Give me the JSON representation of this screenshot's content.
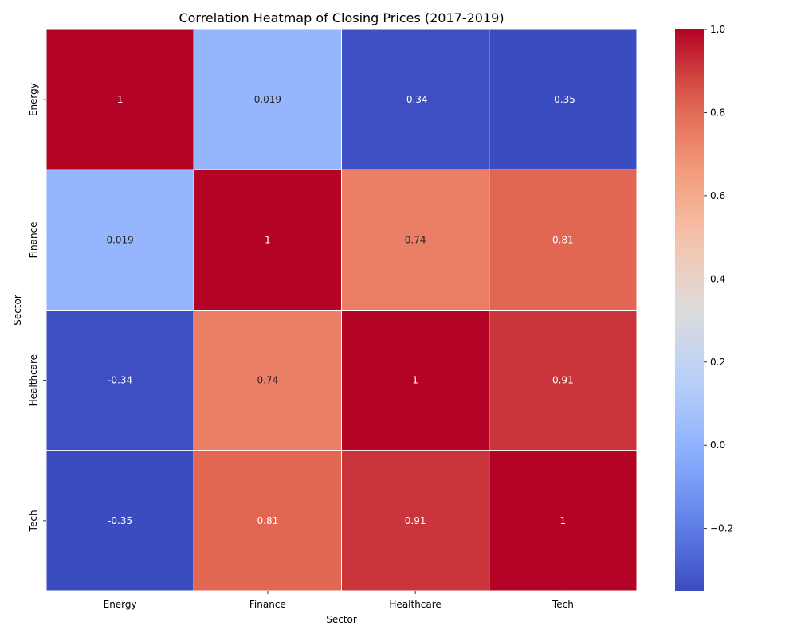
{
  "chart_data": {
    "type": "heatmap",
    "title": "Correlation Heatmap of Closing Prices (2017-2019)",
    "xlabel": "Sector",
    "ylabel": "Sector",
    "x_categories": [
      "Energy",
      "Finance",
      "Healthcare",
      "Tech"
    ],
    "y_categories": [
      "Energy",
      "Finance",
      "Healthcare",
      "Tech"
    ],
    "values": [
      [
        1,
        0.019,
        -0.34,
        -0.35
      ],
      [
        0.019,
        1,
        0.74,
        0.81
      ],
      [
        -0.34,
        0.74,
        1,
        0.91
      ],
      [
        -0.35,
        0.81,
        0.91,
        1
      ]
    ],
    "annotations": [
      [
        "1",
        "0.019",
        "-0.34",
        "-0.35"
      ],
      [
        "0.019",
        "1",
        "0.74",
        "0.81"
      ],
      [
        "-0.34",
        "0.74",
        "1",
        "0.91"
      ],
      [
        "-0.35",
        "0.81",
        "0.91",
        "1"
      ]
    ],
    "colormap": "coolwarm",
    "colorbar": {
      "range": [
        -0.35,
        1.0
      ],
      "ticks": [
        1.0,
        0.8,
        0.6,
        0.4,
        0.2,
        0.0,
        -0.2
      ],
      "tick_labels": [
        "1.0",
        "0.8",
        "0.6",
        "0.4",
        "0.2",
        "0.0",
        "−0.2"
      ]
    },
    "grid": true,
    "cell_border_color": "#ffffff"
  }
}
